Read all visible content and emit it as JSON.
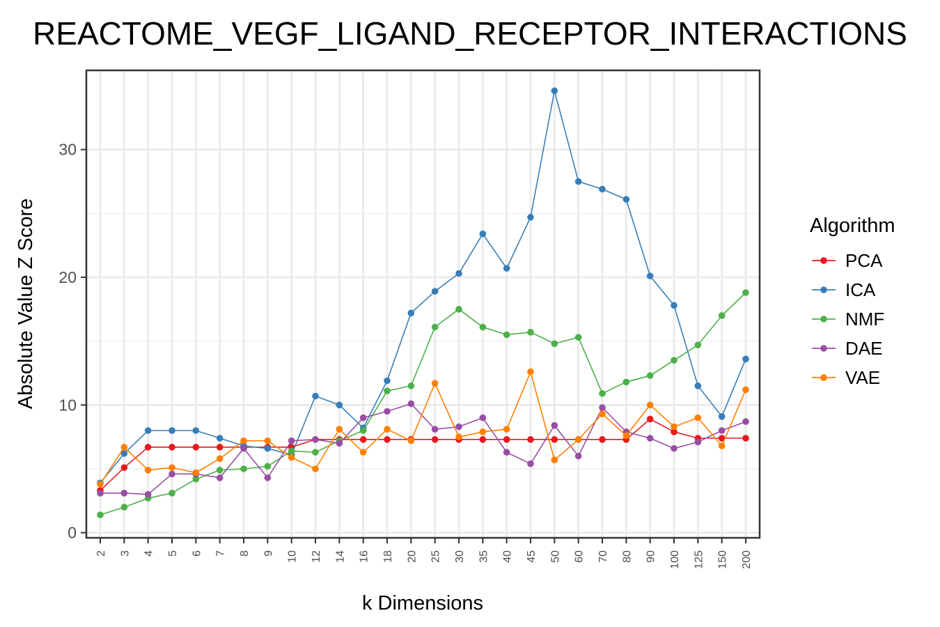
{
  "chart_data": {
    "type": "line",
    "title": "REACTOME_VEGF_LIGAND_RECEPTOR_INTERACTIONS",
    "xlabel": "k Dimensions",
    "ylabel": "Absolute Value Z Score",
    "categories": [
      "2",
      "3",
      "4",
      "5",
      "6",
      "7",
      "8",
      "9",
      "10",
      "12",
      "14",
      "16",
      "18",
      "20",
      "25",
      "30",
      "35",
      "40",
      "45",
      "50",
      "60",
      "70",
      "80",
      "90",
      "100",
      "125",
      "150",
      "200"
    ],
    "yticks": [
      0,
      10,
      20,
      30
    ],
    "ylim": [
      -0.4,
      36.2
    ],
    "grid": true,
    "legend": {
      "title": "Algorithm",
      "position": "right"
    },
    "series": [
      {
        "name": "PCA",
        "color": "#e41a1c",
        "values": [
          3.3,
          5.1,
          6.7,
          6.7,
          6.7,
          6.7,
          6.7,
          6.7,
          6.7,
          7.3,
          7.3,
          7.3,
          7.3,
          7.3,
          7.3,
          7.3,
          7.3,
          7.3,
          7.3,
          7.3,
          7.3,
          7.3,
          7.3,
          8.9,
          7.9,
          7.4,
          7.4,
          7.4
        ]
      },
      {
        "name": "ICA",
        "color": "#377eb8",
        "values": [
          3.9,
          6.2,
          8.0,
          8.0,
          8.0,
          7.4,
          6.8,
          6.6,
          6.1,
          10.7,
          10.0,
          8.2,
          11.9,
          17.2,
          18.9,
          20.3,
          23.4,
          20.7,
          24.7,
          34.6,
          27.5,
          26.9,
          26.1,
          20.1,
          17.8,
          11.5,
          9.1,
          13.6
        ]
      },
      {
        "name": "NMF",
        "color": "#4daf4a",
        "values": [
          1.4,
          2.0,
          2.7,
          3.1,
          4.2,
          4.9,
          5.0,
          5.2,
          6.4,
          6.3,
          7.2,
          8.0,
          11.1,
          11.5,
          16.1,
          17.5,
          16.1,
          15.5,
          15.7,
          14.8,
          15.3,
          10.9,
          11.8,
          12.3,
          13.5,
          14.7,
          17.0,
          18.8
        ]
      },
      {
        "name": "DAE",
        "color": "#984ea3",
        "values": [
          3.1,
          3.1,
          3.0,
          4.6,
          4.6,
          4.3,
          6.6,
          4.3,
          7.2,
          7.3,
          7.0,
          9.0,
          9.5,
          10.1,
          8.1,
          8.3,
          9.0,
          6.3,
          5.4,
          8.4,
          6.0,
          9.8,
          7.9,
          7.4,
          6.6,
          7.1,
          8.0,
          8.7
        ]
      },
      {
        "name": "VAE",
        "color": "#ff7f00",
        "values": [
          3.8,
          6.7,
          4.9,
          5.1,
          4.7,
          5.8,
          7.2,
          7.2,
          5.9,
          5.0,
          8.1,
          6.3,
          8.1,
          7.2,
          11.7,
          7.5,
          7.9,
          8.1,
          12.6,
          5.7,
          7.3,
          9.3,
          7.6,
          10.0,
          8.3,
          9.0,
          6.8,
          11.2
        ]
      }
    ]
  }
}
